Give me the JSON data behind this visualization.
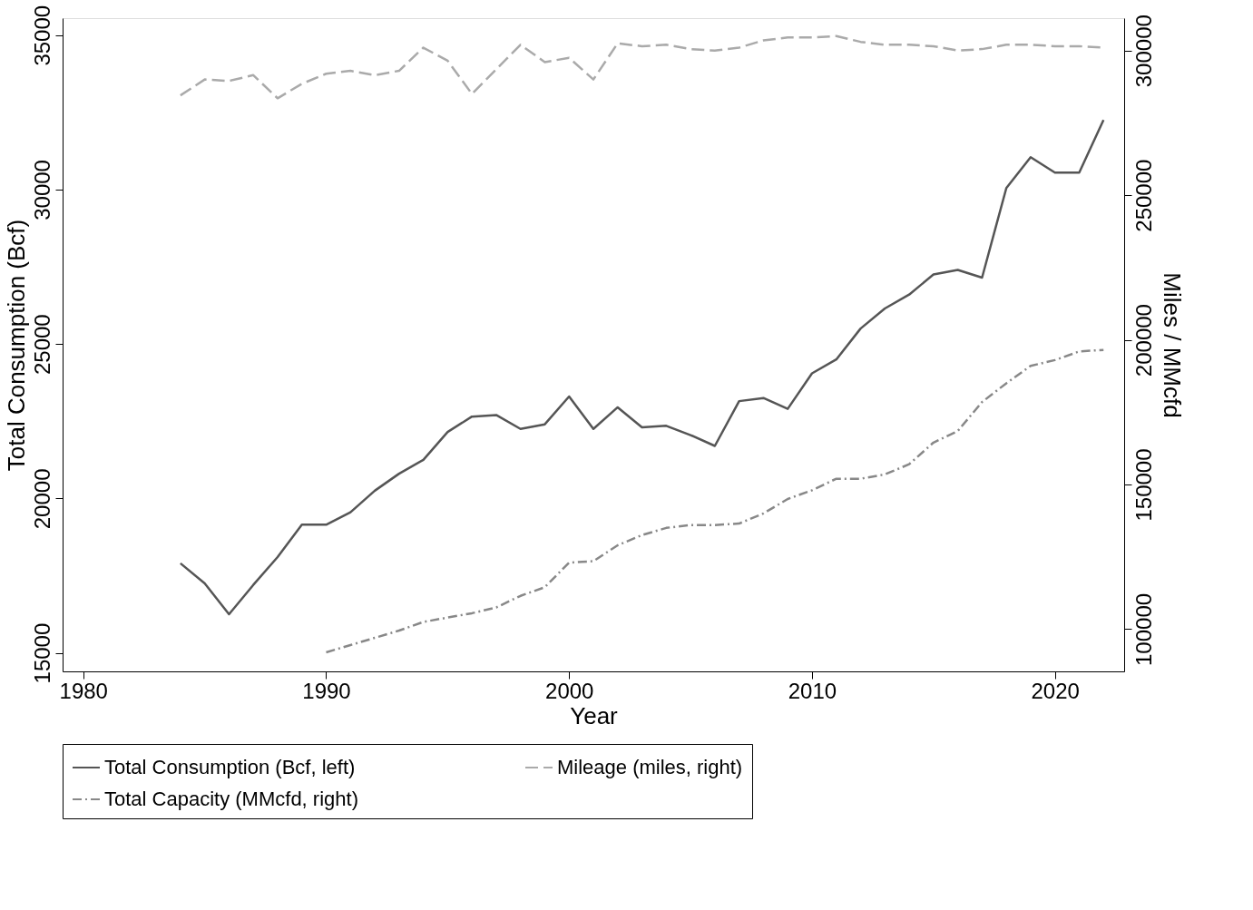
{
  "chart_data": {
    "type": "line",
    "xlabel": "Year",
    "ylabel": "Total Consumption (Bcf)",
    "y2label": "Miles / MMcfd",
    "x": [
      1984,
      1985,
      1986,
      1987,
      1988,
      1989,
      1990,
      1991,
      1992,
      1993,
      1994,
      1995,
      1996,
      1997,
      1998,
      1999,
      2000,
      2001,
      2002,
      2003,
      2004,
      2005,
      2006,
      2007,
      2008,
      2009,
      2010,
      2011,
      2012,
      2013,
      2014,
      2015,
      2016,
      2017,
      2018,
      2019,
      2020,
      2021,
      2022
    ],
    "xlim": [
      1979.15,
      2022.85
    ],
    "xticks": [
      1980,
      1990,
      2000,
      2010,
      2020
    ],
    "ylim": [
      14400,
      35550
    ],
    "yticks": [
      15000,
      20000,
      25000,
      30000,
      35000
    ],
    "y2lim": [
      85400,
      311200
    ],
    "y2ticks": [
      100000,
      150000,
      200000,
      250000,
      300000
    ],
    "grid": false,
    "legend": "bottom",
    "marker": "none",
    "series": [
      {
        "name": "Total Consumption (Bcf, left)",
        "color": "#555555",
        "line_style": "solid",
        "values": [
          17900,
          17250,
          16250,
          17200,
          18100,
          19150,
          19150,
          19550,
          20250,
          20800,
          21250,
          22150,
          22650,
          22700,
          22250,
          22400,
          23300,
          22250,
          22950,
          22300,
          22350,
          22050,
          21700,
          23150,
          23250,
          22900,
          24050,
          24500,
          25500,
          26150,
          26600,
          27250,
          27400,
          27150,
          30050,
          31050,
          30550,
          30550,
          32250
        ]
      },
      {
        "name": "Mileage (miles, right)",
        "color": "#aaaaaa",
        "line_style": "dashed",
        "axis": "y2",
        "values": [
          284500,
          290000,
          289500,
          291500,
          283500,
          288500,
          292000,
          293000,
          291500,
          293000,
          301000,
          296500,
          285000,
          293500,
          302000,
          296000,
          297500,
          290000,
          302500,
          301500,
          302000,
          300500,
          300000,
          301000,
          303500,
          304500,
          304500,
          305000,
          303000,
          302000,
          302000,
          301500,
          300000,
          300500,
          302000,
          302000,
          301500,
          301500,
          301000
        ]
      },
      {
        "name": "Total Capacity (MMcfd, right)",
        "color": "#888888",
        "line_style": "dashdot",
        "axis": "y2",
        "values": [
          null,
          null,
          null,
          null,
          null,
          null,
          92000,
          94500,
          97000,
          99500,
          102500,
          104000,
          105500,
          107500,
          111500,
          114500,
          123000,
          123500,
          129000,
          132500,
          135000,
          136000,
          136000,
          136500,
          140000,
          145000,
          148000,
          152000,
          152000,
          153500,
          157000,
          164500,
          168500,
          178500,
          185000,
          191000,
          193000,
          196000,
          196500
        ]
      }
    ]
  }
}
